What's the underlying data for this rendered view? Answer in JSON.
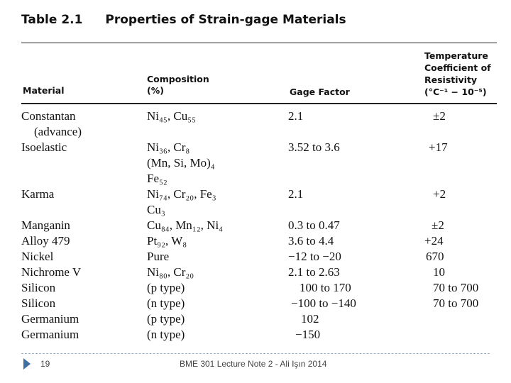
{
  "table": {
    "number": "Table 2.1",
    "title": "Properties of Strain-gage Materials",
    "headers": {
      "material": "Material",
      "composition_line1": "Composition",
      "composition_line2": "(%)",
      "gage_factor": "Gage Factor",
      "tcr_line1": "Temperature",
      "tcr_line2": "Coefficient of",
      "tcr_line3": "Resistivity",
      "tcr_line4": "(°C⁻¹ − 10⁻⁵)"
    },
    "rows": [
      {
        "material": "Constantan",
        "material2": "(advance)",
        "composition": "Ni₄₅, Cu₅₅",
        "gage": "2.1",
        "tcr": "±2"
      },
      {
        "material": "Isoelastic",
        "composition": "Ni₃₆, Cr₈",
        "composition2": "(Mn, Si, Mo)₄",
        "composition3": "Fe₅₂",
        "gage": "3.52 to 3.6",
        "tcr": "+17"
      },
      {
        "material": "Karma",
        "composition": "Ni₇₄, Cr₂₀, Fe₃",
        "composition2": "Cu₃",
        "gage": "2.1",
        "tcr": "+2"
      },
      {
        "material": "Manganin",
        "composition": "Cu₈₄, Mn₁₂, Ni₄",
        "gage": "0.3 to 0.47",
        "tcr": "±2"
      },
      {
        "material": "Alloy 479",
        "composition": "Pt₉₂, W₈",
        "gage": "3.6 to 4.4",
        "tcr": "+24"
      },
      {
        "material": "Nickel",
        "composition": "Pure",
        "gage": "−12 to −20",
        "tcr": "670"
      },
      {
        "material": "Nichrome V",
        "composition": "Ni₈₀, Cr₂₀",
        "gage": "2.1 to 2.63",
        "tcr": "10"
      },
      {
        "material": "Silicon",
        "composition": "(p type)",
        "gage": "100 to 170",
        "tcr": "70 to 700"
      },
      {
        "material": "Silicon",
        "composition": "(n type)",
        "gage": "−100 to −140",
        "tcr": "70 to 700"
      },
      {
        "material": "Germanium",
        "composition": "(p type)",
        "gage": "102",
        "tcr": ""
      },
      {
        "material": "Germanium",
        "composition": "(n type)",
        "gage": "−150",
        "tcr": ""
      }
    ]
  },
  "footer": {
    "page_number": "19",
    "text": "BME 301 Lecture Note 2 - Ali Işın 2014",
    "accent_color": "#3f6ea3"
  }
}
